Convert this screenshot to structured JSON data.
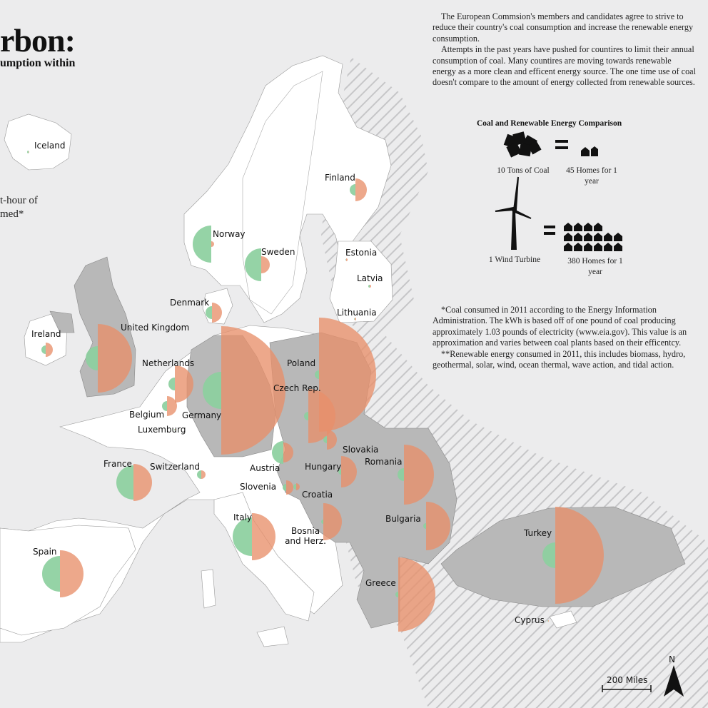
{
  "title": "rbon:",
  "subtitle": "umption within",
  "legend_note": [
    "t-hour of",
    "med*"
  ],
  "intro": [
    "The European Commsion's members and candidates agree to strive to reduce their country's coal consumption and increase the renewable energy consumption.",
    "Attempts in the past years have pushed for countires to limit their annual consumption of coal. Many countires are moving towards renewable energy as a more clean and efficent energy source. The one time use of coal doesn't compare to the amount of energy collected from renewable sources."
  ],
  "comparison": {
    "title": "Coal and Renewable Energy Comparison",
    "coal_caption": "10  Tons of Coal",
    "coal_homes": "45 Homes for 1 year",
    "turbine_caption": "1 Wind Turbine",
    "turbine_homes": "380 Homes for 1 year",
    "equals": "="
  },
  "notes": [
    "*Coal consumed in 2011 according to the Energy Information Administration. The kWh is based off of one pound of coal producing approximately 1.03 pounds of electricity (www.eia.gov). This value is an approximation and varies between coal plants based on their efficentcy.",
    "**Renewable energy consumed in 2011, this includes biomass, hydro, geothermal, solar, wind, ocean thermal, wave action, and tidal action."
  ],
  "scale_label": "200 Miles",
  "north_label": "N",
  "colors": {
    "renewable": "#8ccf9e",
    "coal": "#e8906a",
    "member_land": "#ffffff",
    "candidate_land": "#b8b8b8",
    "sea": "#ececed"
  },
  "countries": [
    {
      "name": "Iceland",
      "renewable": 2,
      "coal": 1,
      "status": "candidate"
    },
    {
      "name": "Norway",
      "renewable": 26,
      "coal": 4,
      "status": "other"
    },
    {
      "name": "Sweden",
      "renewable": 23,
      "coal": 12,
      "status": "member"
    },
    {
      "name": "Finland",
      "renewable": 8,
      "coal": 16,
      "status": "member"
    },
    {
      "name": "Estonia",
      "renewable": 1,
      "coal": 2,
      "status": "member"
    },
    {
      "name": "Latvia",
      "renewable": 2,
      "coal": 2,
      "status": "member"
    },
    {
      "name": "Lithuania",
      "renewable": 1,
      "coal": 2,
      "status": "member"
    },
    {
      "name": "Denmark",
      "renewable": 9,
      "coal": 14,
      "status": "member"
    },
    {
      "name": "Ireland",
      "renewable": 6,
      "coal": 10,
      "status": "member"
    },
    {
      "name": "United Kingdom",
      "renewable": 17,
      "coal": 48,
      "status": "member"
    },
    {
      "name": "Netherlands",
      "renewable": 9,
      "coal": 26,
      "status": "member"
    },
    {
      "name": "Belgium",
      "renewable": 7,
      "coal": 14,
      "status": "member"
    },
    {
      "name": "Luxemburg",
      "renewable": 1,
      "coal": 1,
      "status": "member"
    },
    {
      "name": "Germany",
      "renewable": 26,
      "coal": 90,
      "status": "member"
    },
    {
      "name": "Poland",
      "renewable": 6,
      "coal": 80,
      "status": "member"
    },
    {
      "name": "Czech Rep.",
      "renewable": 6,
      "coal": 38,
      "status": "member"
    },
    {
      "name": "Slovakia",
      "renewable": 5,
      "coal": 14,
      "status": "member"
    },
    {
      "name": "Austria",
      "renewable": 16,
      "coal": 14,
      "status": "member"
    },
    {
      "name": "Hungary",
      "renewable": 4,
      "coal": 22,
      "status": "member"
    },
    {
      "name": "Romania",
      "renewable": 9,
      "coal": 42,
      "status": "member"
    },
    {
      "name": "Bulgaria",
      "renewable": 4,
      "coal": 34,
      "status": "member"
    },
    {
      "name": "Slovenia",
      "renewable": 5,
      "coal": 10,
      "status": "member"
    },
    {
      "name": "Croatia",
      "renewable": 4,
      "coal": 5,
      "status": "candidate"
    },
    {
      "name": "Bosnia and Herz.",
      "renewable": 3,
      "coal": 26,
      "status": "candidate"
    },
    {
      "name": "France",
      "renewable": 24,
      "coal": 26,
      "status": "member"
    },
    {
      "name": "Switzerland",
      "renewable": 6,
      "coal": 6,
      "status": "other"
    },
    {
      "name": "Italy",
      "renewable": 27,
      "coal": 33,
      "status": "member"
    },
    {
      "name": "Spain",
      "renewable": 25,
      "coal": 33,
      "status": "member"
    },
    {
      "name": "Greece",
      "renewable": 4,
      "coal": 52,
      "status": "member"
    },
    {
      "name": "Turkey",
      "renewable": 18,
      "coal": 68,
      "status": "candidate"
    },
    {
      "name": "Cyprus",
      "renewable": 1,
      "coal": 1,
      "status": "member"
    }
  ]
}
